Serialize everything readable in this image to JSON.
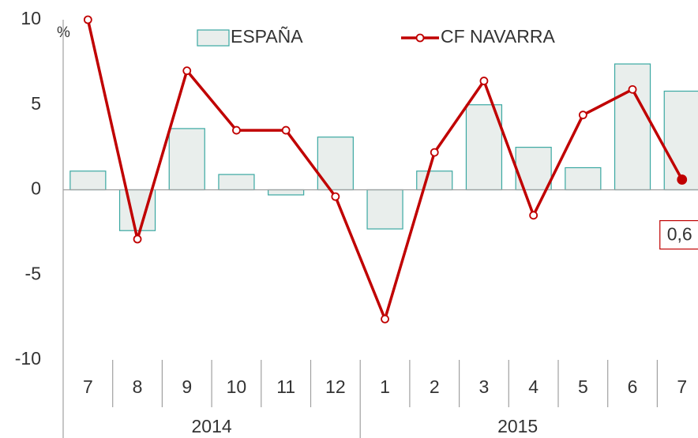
{
  "chart_data": {
    "type": "bar-line",
    "unit": "%",
    "categories": [
      "7",
      "8",
      "9",
      "10",
      "11",
      "12",
      "1",
      "2",
      "3",
      "4",
      "5",
      "6",
      "7"
    ],
    "group_labels": [
      "2014",
      "2015"
    ],
    "group_sizes": [
      6,
      7
    ],
    "series": [
      {
        "name": "ESPAÑA",
        "type": "bar",
        "color": "#e9eeec",
        "stroke": "#3aa8a2",
        "values": [
          1.1,
          -2.4,
          3.6,
          0.9,
          -0.3,
          3.1,
          -2.3,
          1.1,
          5.0,
          2.5,
          1.3,
          7.4,
          5.8
        ]
      },
      {
        "name": "CF NAVARRA",
        "type": "line",
        "color": "#c00000",
        "values": [
          10,
          -2.9,
          7.0,
          3.5,
          3.5,
          -0.4,
          -7.6,
          2.2,
          6.4,
          -1.5,
          4.4,
          5.9,
          0.6
        ],
        "value_labels": [
          null,
          null,
          null,
          null,
          null,
          null,
          null,
          null,
          null,
          null,
          null,
          null,
          "0,6"
        ]
      }
    ],
    "ylim": [
      -10,
      10
    ],
    "yticks": [
      -10,
      -5,
      0,
      5,
      10
    ]
  }
}
